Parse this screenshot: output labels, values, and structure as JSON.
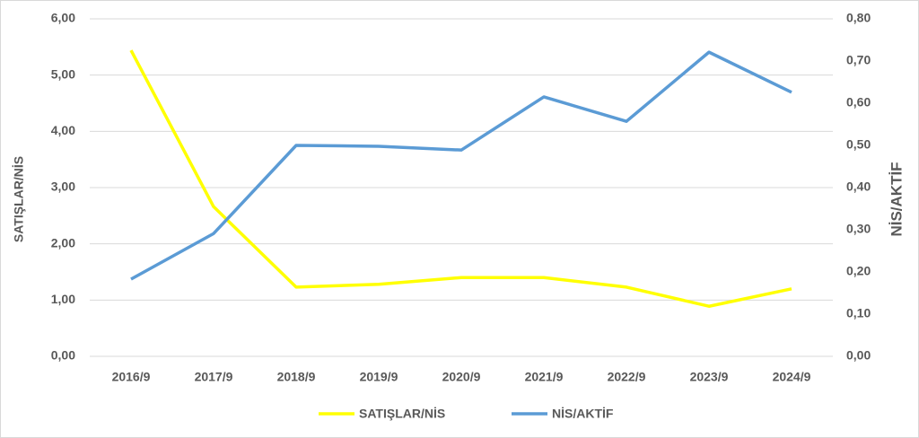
{
  "chart_data": {
    "type": "line",
    "y_label": "SATIŞLAR/NİS",
    "y2_label": "NİS/AKTİF",
    "categories": [
      "2016/9",
      "2017/9",
      "2018/9",
      "2019/9",
      "2020/9",
      "2021/9",
      "2022/9",
      "2023/9",
      "2024/9"
    ],
    "series": [
      {
        "name": "SATIŞLAR/NİS",
        "color": "#ffff00",
        "values": [
          5.44,
          2.66,
          1.23,
          1.28,
          1.4,
          1.4,
          1.23,
          0.89,
          1.2
        ]
      },
      {
        "name": "NİS/AKTİF",
        "color": "#5b9bd5",
        "axis": "y2",
        "values": [
          0.183,
          0.291,
          0.5,
          0.498,
          0.489,
          0.615,
          0.557,
          0.721,
          0.626
        ]
      }
    ],
    "ylim": [
      0,
      6
    ],
    "yticks": [
      {
        "value": 0,
        "label": "0,00"
      },
      {
        "value": 1,
        "label": "1,00"
      },
      {
        "value": 2,
        "label": "2,00"
      },
      {
        "value": 3,
        "label": "3,00"
      },
      {
        "value": 4,
        "label": "4,00"
      },
      {
        "value": 5,
        "label": "5,00"
      },
      {
        "value": 6,
        "label": "6,00"
      }
    ],
    "y2lim": [
      0,
      0.8
    ],
    "y2ticks": [
      {
        "value": 0,
        "label": "0,00"
      },
      {
        "value": 0.1,
        "label": "0,10"
      },
      {
        "value": 0.2,
        "label": "0,20"
      },
      {
        "value": 0.3,
        "label": "0,30"
      },
      {
        "value": 0.4,
        "label": "0,40"
      },
      {
        "value": 0.5,
        "label": "0,50"
      },
      {
        "value": 0.6,
        "label": "0,60"
      },
      {
        "value": 0.7,
        "label": "0,70"
      },
      {
        "value": 0.8,
        "label": "0,80"
      }
    ],
    "grid": true,
    "legend": "bottom"
  }
}
